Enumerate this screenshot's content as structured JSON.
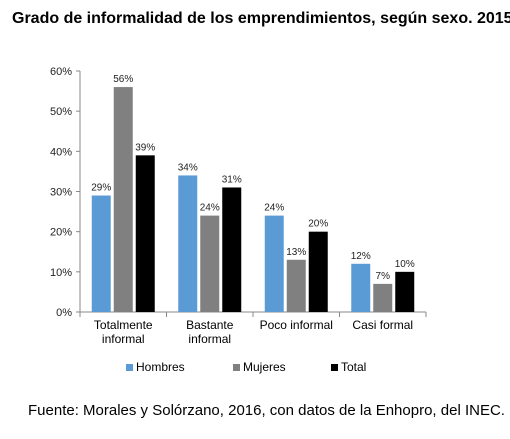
{
  "title": "Grado de informalidad de los emprendimientos, según sexo. 2015",
  "source": "Fuente: Morales y Solórzano, 2016, con datos de la Enhopro, del INEC.",
  "chart_data": {
    "type": "bar",
    "categories": [
      [
        "Totalmente",
        "informal"
      ],
      [
        "Bastante",
        "informal"
      ],
      [
        "Poco informal"
      ],
      [
        "Casi formal"
      ]
    ],
    "series": [
      {
        "name": "Hombres",
        "color": "#5B9BD5",
        "values": [
          29,
          34,
          24,
          12
        ],
        "labels": [
          "29%",
          "34%",
          "24%",
          "12%"
        ]
      },
      {
        "name": "Mujeres",
        "color": "#808080",
        "values": [
          56,
          24,
          13,
          7
        ],
        "labels": [
          "56%",
          "24%",
          "13%",
          "7%"
        ]
      },
      {
        "name": "Total",
        "color": "#000000",
        "values": [
          39,
          31,
          20,
          10
        ],
        "labels": [
          "39%",
          "31%",
          "20%",
          "10%"
        ]
      }
    ],
    "ylim": [
      0,
      60
    ],
    "yticks": [
      "0%",
      "10%",
      "20%",
      "30%",
      "40%",
      "50%",
      "60%"
    ],
    "grid": false,
    "legend_position": "bottom"
  }
}
